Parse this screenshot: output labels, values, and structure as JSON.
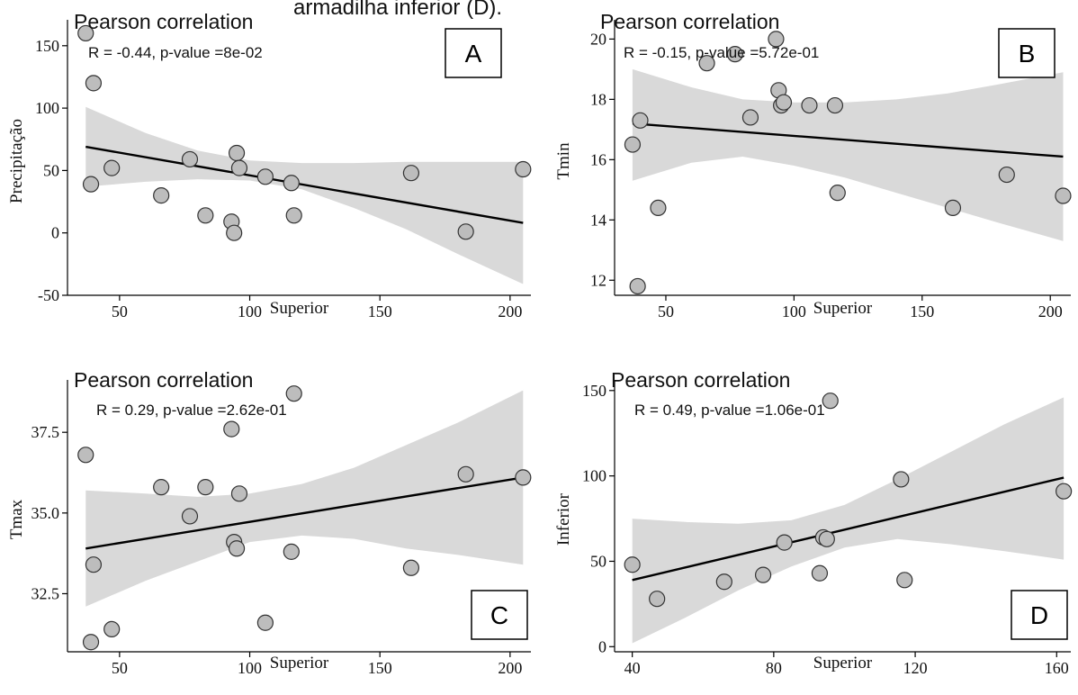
{
  "figure": {
    "caption_fragment": "armadilha inferior (D)."
  },
  "colors": {
    "band": "#d9d9d9",
    "point_fill": "#bdbdbd",
    "point_stroke": "#333333",
    "line": "#000000",
    "axis": "#000000"
  },
  "chart_data": [
    {
      "id": "A",
      "type": "scatter",
      "letter": "A",
      "title": "Pearson correlation",
      "stat": "R = -0.44, p-value =8e-02",
      "xlabel": "Superior",
      "ylabel": "Precipitação",
      "xlim": [
        30,
        208
      ],
      "ylim": [
        -50,
        165
      ],
      "xticks": [
        50,
        100,
        150,
        200
      ],
      "yticks": [
        -50,
        0,
        50,
        100,
        150
      ],
      "ytick_labels": [
        "-50",
        "0",
        "50",
        "100",
        "150"
      ],
      "points": [
        {
          "x": 37,
          "y": 160
        },
        {
          "x": 40,
          "y": 120
        },
        {
          "x": 39,
          "y": 39
        },
        {
          "x": 47,
          "y": 52
        },
        {
          "x": 66,
          "y": 30
        },
        {
          "x": 77,
          "y": 59
        },
        {
          "x": 83,
          "y": 14
        },
        {
          "x": 93,
          "y": 9
        },
        {
          "x": 94,
          "y": 0
        },
        {
          "x": 95,
          "y": 64
        },
        {
          "x": 96,
          "y": 52
        },
        {
          "x": 106,
          "y": 45
        },
        {
          "x": 116,
          "y": 40
        },
        {
          "x": 117,
          "y": 14
        },
        {
          "x": 162,
          "y": 48
        },
        {
          "x": 183,
          "y": 1
        },
        {
          "x": 205,
          "y": 51
        }
      ],
      "fit": {
        "x": [
          37,
          205
        ],
        "y": [
          69,
          8
        ]
      },
      "band": {
        "x": [
          37,
          60,
          80,
          100,
          120,
          140,
          160,
          180,
          205
        ],
        "upper": [
          101,
          80,
          66,
          58,
          56,
          56,
          57,
          57,
          57
        ],
        "lower": [
          37,
          41,
          43,
          42,
          35,
          20,
          3,
          -17,
          -41
        ]
      }
    },
    {
      "id": "B",
      "type": "scatter",
      "letter": "B",
      "title": "Pearson correlation",
      "stat": "R = -0.15, p-value =5.72e-01",
      "xlabel": "Superior",
      "ylabel": "Tmin",
      "xlim": [
        30,
        208
      ],
      "ylim": [
        11.5,
        20.4
      ],
      "xticks": [
        50,
        100,
        150,
        200
      ],
      "yticks": [
        12,
        14,
        16,
        18,
        20
      ],
      "ytick_labels": [
        "12",
        "14",
        "16",
        "18",
        "20"
      ],
      "points": [
        {
          "x": 37,
          "y": 16.5
        },
        {
          "x": 40,
          "y": 17.3
        },
        {
          "x": 39,
          "y": 11.8
        },
        {
          "x": 47,
          "y": 14.4
        },
        {
          "x": 66,
          "y": 19.2
        },
        {
          "x": 77,
          "y": 19.5
        },
        {
          "x": 83,
          "y": 17.4
        },
        {
          "x": 93,
          "y": 20.0
        },
        {
          "x": 94,
          "y": 18.3
        },
        {
          "x": 95,
          "y": 17.8
        },
        {
          "x": 96,
          "y": 17.9
        },
        {
          "x": 106,
          "y": 17.8
        },
        {
          "x": 116,
          "y": 17.8
        },
        {
          "x": 117,
          "y": 14.9
        },
        {
          "x": 162,
          "y": 14.4
        },
        {
          "x": 183,
          "y": 15.5
        },
        {
          "x": 205,
          "y": 14.8
        }
      ],
      "fit": {
        "x": [
          37,
          205
        ],
        "y": [
          17.2,
          16.1
        ]
      },
      "band": {
        "x": [
          37,
          60,
          80,
          100,
          120,
          140,
          160,
          180,
          205
        ],
        "upper": [
          19.0,
          18.4,
          18.0,
          17.9,
          17.9,
          18.0,
          18.2,
          18.5,
          18.9
        ],
        "lower": [
          15.3,
          15.9,
          16.1,
          15.8,
          15.4,
          14.9,
          14.4,
          13.9,
          13.3
        ]
      }
    },
    {
      "id": "C",
      "type": "scatter",
      "letter": "C",
      "title": "Pearson correlation",
      "stat": "R = 0.29, p-value =2.62e-01",
      "xlabel": "Superior",
      "ylabel": "Tmax",
      "xlim": [
        30,
        208
      ],
      "ylim": [
        30.7,
        38.9
      ],
      "xticks": [
        50,
        100,
        150,
        200
      ],
      "yticks": [
        32.5,
        35.0,
        37.5
      ],
      "ytick_labels": [
        "32.5",
        "35.0",
        "37.5"
      ],
      "points": [
        {
          "x": 37,
          "y": 36.8
        },
        {
          "x": 40,
          "y": 33.4
        },
        {
          "x": 39,
          "y": 31.0
        },
        {
          "x": 47,
          "y": 31.4
        },
        {
          "x": 66,
          "y": 35.8
        },
        {
          "x": 77,
          "y": 34.9
        },
        {
          "x": 83,
          "y": 35.8
        },
        {
          "x": 93,
          "y": 37.6
        },
        {
          "x": 94,
          "y": 34.1
        },
        {
          "x": 95,
          "y": 33.9
        },
        {
          "x": 96,
          "y": 35.6
        },
        {
          "x": 106,
          "y": 31.6
        },
        {
          "x": 116,
          "y": 33.8
        },
        {
          "x": 117,
          "y": 38.7
        },
        {
          "x": 162,
          "y": 33.3
        },
        {
          "x": 183,
          "y": 36.2
        },
        {
          "x": 205,
          "y": 36.1
        }
      ],
      "fit": {
        "x": [
          37,
          205
        ],
        "y": [
          33.9,
          36.1
        ]
      },
      "band": {
        "x": [
          37,
          60,
          80,
          100,
          120,
          140,
          160,
          180,
          205
        ],
        "upper": [
          35.7,
          35.6,
          35.5,
          35.6,
          35.9,
          36.4,
          37.1,
          37.8,
          38.8
        ],
        "lower": [
          32.1,
          32.9,
          33.5,
          34.1,
          34.3,
          34.2,
          33.9,
          33.7,
          33.4
        ]
      }
    },
    {
      "id": "D",
      "type": "scatter",
      "letter": "D",
      "title": "Pearson correlation",
      "stat": "R = 0.49, p-value =1.06e-01",
      "xlabel": "Superior",
      "ylabel": "Inferior",
      "xlim": [
        35,
        164
      ],
      "ylim": [
        -3,
        152
      ],
      "xticks": [
        40,
        80,
        120,
        160
      ],
      "yticks": [
        0,
        50,
        100,
        150
      ],
      "ytick_labels": [
        "0",
        "50",
        "100",
        "150"
      ],
      "points": [
        {
          "x": 40,
          "y": 48
        },
        {
          "x": 47,
          "y": 28
        },
        {
          "x": 66,
          "y": 38
        },
        {
          "x": 77,
          "y": 42
        },
        {
          "x": 83,
          "y": 61
        },
        {
          "x": 93,
          "y": 43
        },
        {
          "x": 94,
          "y": 64
        },
        {
          "x": 95,
          "y": 63
        },
        {
          "x": 96,
          "y": 144
        },
        {
          "x": 116,
          "y": 98
        },
        {
          "x": 117,
          "y": 39
        },
        {
          "x": 162,
          "y": 91
        }
      ],
      "fit": {
        "x": [
          40,
          162
        ],
        "y": [
          39,
          99
        ]
      },
      "band": {
        "x": [
          40,
          55,
          70,
          85,
          100,
          115,
          130,
          145,
          162
        ],
        "upper": [
          75,
          73,
          72,
          74,
          83,
          98,
          114,
          130,
          146
        ],
        "lower": [
          2,
          17,
          33,
          47,
          58,
          63,
          60,
          56,
          51
        ]
      }
    }
  ]
}
